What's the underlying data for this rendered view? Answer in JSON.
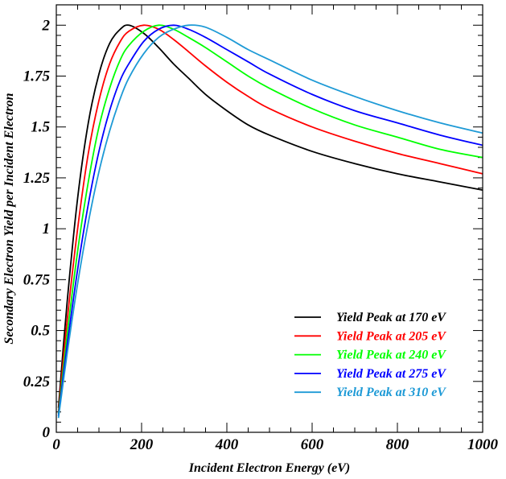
{
  "chart_data": {
    "type": "line",
    "title": "",
    "xlabel": "Incident Electron Energy (eV)",
    "ylabel": "Secondary Electron Yield per Incident Electron",
    "xlim": [
      0,
      1000
    ],
    "ylim": [
      0,
      2.1
    ],
    "x_ticks": [
      0,
      200,
      400,
      600,
      800,
      1000
    ],
    "x_tick_labels": [
      "0",
      "200",
      "400",
      "600",
      "800",
      "1000"
    ],
    "y_ticks": [
      0,
      0.25,
      0.5,
      0.75,
      1,
      1.25,
      1.5,
      1.75,
      2
    ],
    "y_tick_labels": [
      "0",
      "0.25",
      "0.5",
      "0.75",
      "1",
      "1.25",
      "1.5",
      "1.75",
      "2"
    ],
    "grid": false,
    "legend_position": "bottom-right",
    "x": [
      5,
      25,
      50,
      75,
      100,
      125,
      150,
      170,
      205,
      240,
      275,
      310,
      350,
      400,
      450,
      500,
      600,
      700,
      800,
      900,
      1000
    ],
    "series": [
      {
        "name": "Yield Peak at 170 eV",
        "color": "#000000",
        "values": [
          0.12,
          0.63,
          1.15,
          1.52,
          1.76,
          1.91,
          1.98,
          2.0,
          1.96,
          1.89,
          1.81,
          1.74,
          1.66,
          1.58,
          1.51,
          1.46,
          1.38,
          1.32,
          1.27,
          1.23,
          1.19
        ]
      },
      {
        "name": "Yield Peak at 205 eV",
        "color": "#ff0000",
        "values": [
          0.1,
          0.54,
          1.0,
          1.37,
          1.63,
          1.81,
          1.92,
          1.97,
          2.0,
          1.98,
          1.93,
          1.87,
          1.8,
          1.72,
          1.65,
          1.59,
          1.5,
          1.43,
          1.37,
          1.32,
          1.27
        ]
      },
      {
        "name": "Yield Peak at 240 eV",
        "color": "#00ff00",
        "values": [
          0.09,
          0.47,
          0.89,
          1.23,
          1.5,
          1.69,
          1.83,
          1.9,
          1.97,
          2.0,
          1.98,
          1.94,
          1.89,
          1.82,
          1.75,
          1.69,
          1.59,
          1.51,
          1.45,
          1.39,
          1.35
        ]
      },
      {
        "name": "Yield Peak at 275 eV",
        "color": "#0000ff",
        "values": [
          0.08,
          0.42,
          0.8,
          1.12,
          1.38,
          1.58,
          1.73,
          1.81,
          1.92,
          1.98,
          2.0,
          1.98,
          1.94,
          1.88,
          1.82,
          1.76,
          1.66,
          1.58,
          1.52,
          1.46,
          1.41
        ]
      },
      {
        "name": "Yield Peak at 310 eV",
        "color": "#1e9ad6",
        "values": [
          0.07,
          0.38,
          0.73,
          1.03,
          1.28,
          1.48,
          1.64,
          1.74,
          1.86,
          1.94,
          1.98,
          2.0,
          1.99,
          1.94,
          1.88,
          1.83,
          1.73,
          1.65,
          1.58,
          1.52,
          1.47
        ]
      }
    ]
  }
}
